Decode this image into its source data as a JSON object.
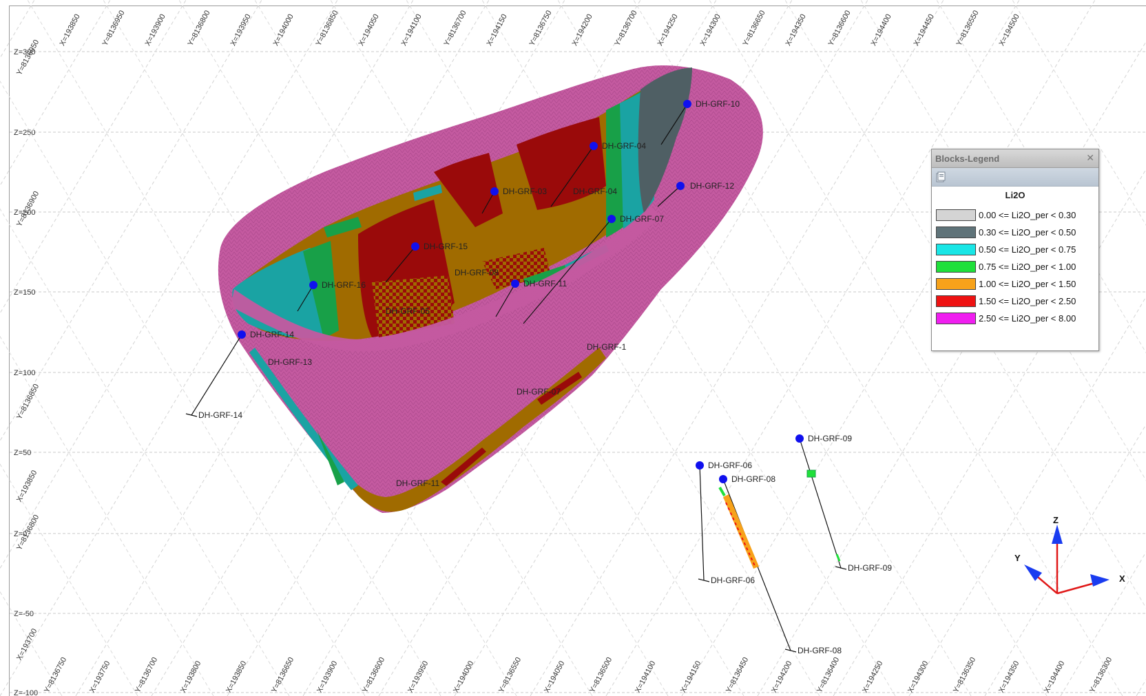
{
  "grid": {
    "z_labels": [
      "Z=300",
      "Z=250",
      "Z=200",
      "Z=150",
      "Z=100",
      "Z=50",
      "Z=0",
      "Z=-50",
      "Z=-100"
    ],
    "top_tick_labels": [
      "X=193850",
      "Y=8136950",
      "X=193900",
      "Y=8136800",
      "X=193950",
      "X=194000",
      "Y=8136850",
      "X=194050",
      "X=194100",
      "Y=8136700",
      "X=194150",
      "Y=8136750",
      "X=194200",
      "Y=8136700",
      "X=194250",
      "X=194300",
      "Y=8136650",
      "X=194350",
      "Y=8136600",
      "X=194400",
      "X=194450",
      "Y=8136550",
      "X=194500"
    ],
    "bottom_tick_labels": [
      "Y=8136750",
      "X=193750",
      "Y=8136700",
      "X=193800",
      "X=193850",
      "Y=8136650",
      "X=193900",
      "Y=8136600",
      "X=193950",
      "X=194000",
      "Y=8136550",
      "X=194050",
      "Y=8136500",
      "X=194100",
      "X=194150",
      "Y=8136450",
      "X=194200",
      "Y=8136400",
      "X=194250",
      "X=194300",
      "Y=8136350",
      "X=194350",
      "X=194400",
      "Y=8136300"
    ],
    "left_tick_labels": [
      "Y=8136950",
      "Y=8136900",
      "X=193850",
      "Y=8136850",
      "X=193700",
      "Y=8136800"
    ]
  },
  "drillholes": {
    "collars": [
      "DH-GRF-10",
      "DH-GRF-04",
      "DH-GRF-03",
      "DH-GRF-04",
      "DH-GRF-12",
      "DH-GRF-07",
      "DH-GRF-15",
      "DH-GRF-08",
      "DH-GRF-16",
      "DH-GRF-11",
      "DH-GRF-05",
      "DH-GRF-14",
      "DH-GRF-1",
      "DH-GRF-13",
      "DH-GRF-07",
      "DH-GRF-11",
      "DH-GRF-09",
      "DH-GRF-06",
      "DH-GRF-08"
    ],
    "ends": [
      "DH-GRF-14",
      "DH-GRF-09",
      "DH-GRF-06",
      "DH-GRF-08"
    ]
  },
  "legend": {
    "title": "Blocks-Legend",
    "close": "✕",
    "heading": "Li2O",
    "items": [
      {
        "label": "0.00 <= Li2O_per < 0.30",
        "color": "#d4d4d4"
      },
      {
        "label": "0.30 <= Li2O_per < 0.50",
        "color": "#5f7379"
      },
      {
        "label": "0.50 <= Li2O_per < 0.75",
        "color": "#19e6e6"
      },
      {
        "label": "0.75 <= Li2O_per < 1.00",
        "color": "#1fe03a"
      },
      {
        "label": "1.00 <= Li2O_per < 1.50",
        "color": "#f7a21a"
      },
      {
        "label": "1.50 <= Li2O_per < 2.50",
        "color": "#ee1212"
      },
      {
        "label": "2.50 <= Li2O_per < 8.00",
        "color": "#f01ef0"
      }
    ]
  },
  "triad": {
    "x": "X",
    "y": "Y",
    "z": "Z"
  },
  "colors": {
    "shell": "#c45aa0",
    "teal": "#1aa3a3",
    "brown": "#a06b00",
    "dark_red": "#9a0a0a",
    "slate": "#4f5f64",
    "green": "#18a048",
    "collar": "#1010ee"
  }
}
